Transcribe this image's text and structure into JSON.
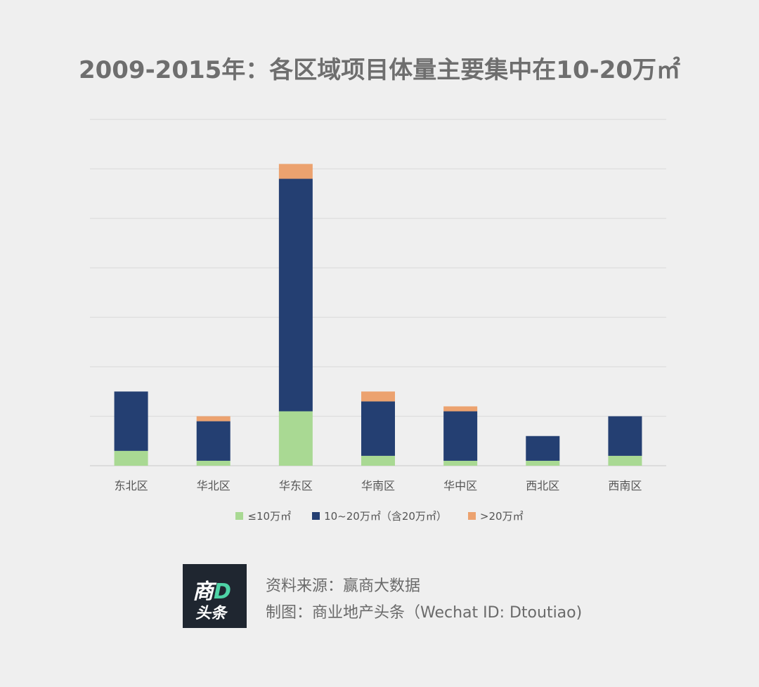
{
  "title": "2009-2015年：各区域项目体量主要集中在10-20万㎡",
  "chart_data": {
    "type": "bar",
    "stacked": true,
    "categories": [
      "东北区",
      "华北区",
      "华东区",
      "华南区",
      "华中区",
      "西北区",
      "西南区"
    ],
    "series": [
      {
        "name": "≤10万㎡",
        "color": "#a9d993",
        "values": [
          3,
          1,
          11,
          2,
          1,
          1,
          2
        ]
      },
      {
        "name": "10~20万㎡（含20万㎡）",
        "color": "#243f72",
        "values": [
          12,
          8,
          47,
          11,
          10,
          5,
          8
        ]
      },
      {
        "name": ">20万㎡",
        "color": "#eca26f",
        "values": [
          0,
          1,
          3,
          2,
          1,
          0,
          0
        ]
      }
    ],
    "ylim": [
      0,
      70
    ],
    "ytick_step": 10,
    "grid": true,
    "legend_position": "bottom"
  },
  "footer": {
    "logo_line1": "商",
    "logo_line1_accent": "D",
    "logo_line2": "头条",
    "source": "资料来源：赢商大数据",
    "credit": "制图：商业地产头条（Wechat ID: Dtoutiao)"
  }
}
